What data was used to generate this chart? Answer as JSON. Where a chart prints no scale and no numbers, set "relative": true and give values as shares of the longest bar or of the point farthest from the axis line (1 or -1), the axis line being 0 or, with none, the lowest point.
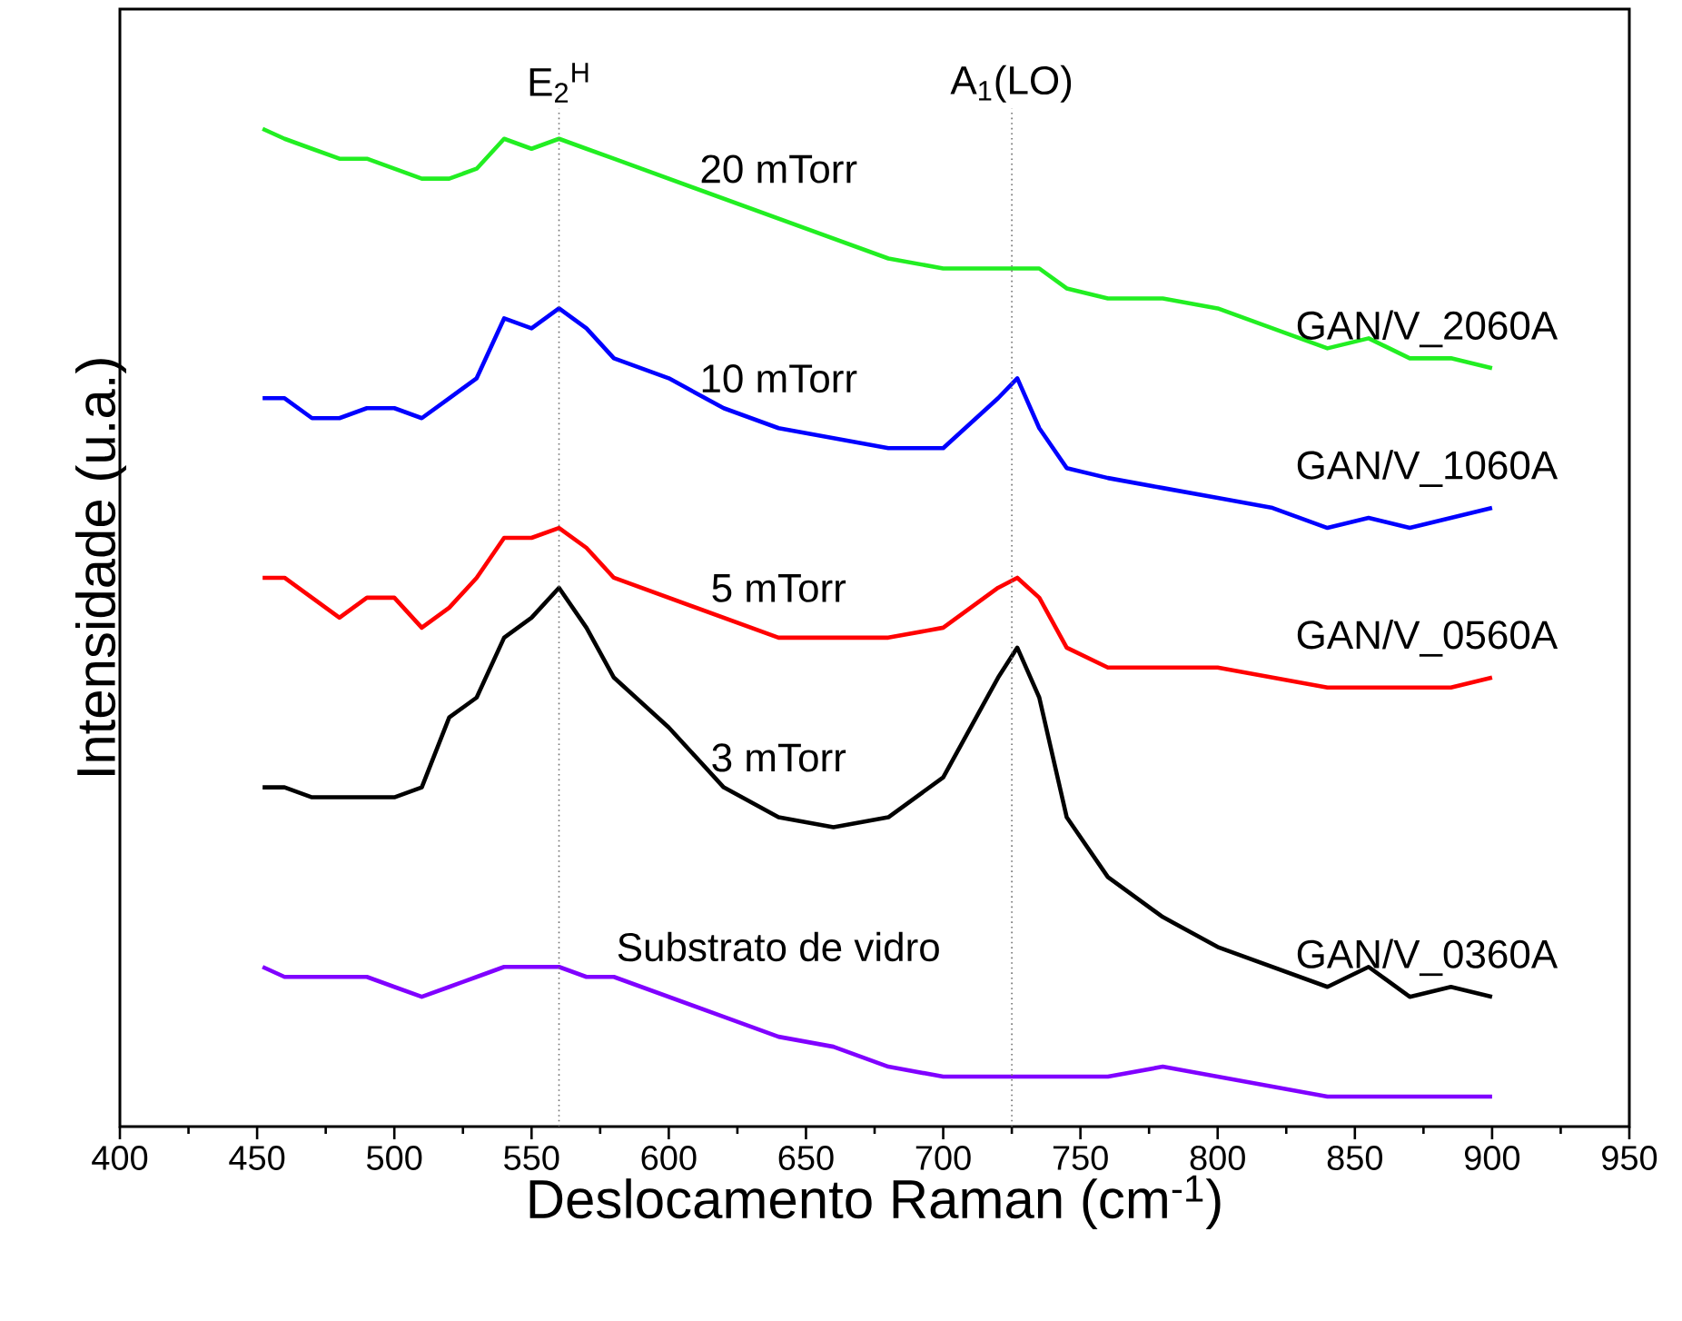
{
  "chart_data": {
    "type": "line",
    "relative": true,
    "line_style": "solid",
    "xlabel": "Deslocamento Raman (cm$^{-1}$)",
    "ylabel": "Intensidade (u.a.)",
    "xlim": [
      400,
      950
    ],
    "xticks": [
      400,
      450,
      500,
      550,
      600,
      650,
      700,
      750,
      800,
      850,
      900,
      950
    ],
    "x": [
      452,
      460,
      470,
      480,
      490,
      500,
      510,
      520,
      530,
      540,
      550,
      560,
      570,
      580,
      600,
      620,
      640,
      660,
      680,
      700,
      720,
      727,
      735,
      745,
      760,
      780,
      800,
      820,
      840,
      855,
      870,
      885,
      900
    ],
    "series": [
      {
        "name": "GAN/V_2060A",
        "color": "#22ee22",
        "values": [
          1.0,
          0.99,
          0.98,
          0.97,
          0.97,
          0.96,
          0.95,
          0.95,
          0.96,
          0.99,
          0.98,
          0.99,
          0.98,
          0.97,
          0.95,
          0.93,
          0.91,
          0.89,
          0.87,
          0.86,
          0.86,
          0.86,
          0.86,
          0.84,
          0.83,
          0.83,
          0.82,
          0.8,
          0.78,
          0.79,
          0.77,
          0.77,
          0.76
        ]
      },
      {
        "name": "GAN/V_1060A",
        "color": "#0000ff",
        "values": [
          0.73,
          0.73,
          0.71,
          0.71,
          0.72,
          0.72,
          0.71,
          0.73,
          0.75,
          0.81,
          0.8,
          0.82,
          0.8,
          0.77,
          0.75,
          0.72,
          0.7,
          0.69,
          0.68,
          0.68,
          0.73,
          0.75,
          0.7,
          0.66,
          0.65,
          0.64,
          0.63,
          0.62,
          0.6,
          0.61,
          0.6,
          0.61,
          0.62
        ]
      },
      {
        "name": "GAN/V_0560A",
        "color": "#ff0000",
        "values": [
          0.55,
          0.55,
          0.53,
          0.51,
          0.53,
          0.53,
          0.5,
          0.52,
          0.55,
          0.59,
          0.59,
          0.6,
          0.58,
          0.55,
          0.53,
          0.51,
          0.49,
          0.49,
          0.49,
          0.5,
          0.54,
          0.55,
          0.53,
          0.48,
          0.46,
          0.46,
          0.46,
          0.45,
          0.44,
          0.44,
          0.44,
          0.44,
          0.45
        ]
      },
      {
        "name": "GAN/V_0360A",
        "color": "#000000",
        "values": [
          0.34,
          0.34,
          0.33,
          0.33,
          0.33,
          0.33,
          0.34,
          0.41,
          0.43,
          0.49,
          0.51,
          0.54,
          0.5,
          0.45,
          0.4,
          0.34,
          0.31,
          0.3,
          0.31,
          0.35,
          0.45,
          0.48,
          0.43,
          0.31,
          0.25,
          0.21,
          0.18,
          0.16,
          0.14,
          0.16,
          0.13,
          0.14,
          0.13
        ]
      },
      {
        "color": "#8000ff",
        "values": [
          0.16,
          0.15,
          0.15,
          0.15,
          0.15,
          0.14,
          0.13,
          0.14,
          0.15,
          0.16,
          0.16,
          0.16,
          0.15,
          0.15,
          0.13,
          0.11,
          0.09,
          0.08,
          0.06,
          0.05,
          0.05,
          0.05,
          0.05,
          0.05,
          0.05,
          0.06,
          0.05,
          0.04,
          0.03,
          0.03,
          0.03,
          0.03,
          0.03
        ]
      }
    ],
    "ref_lines": [
      {
        "axis": "x",
        "value": 560,
        "label": "E$_{2}$$^{H}$",
        "color": "#707070",
        "line_style": "dotted"
      },
      {
        "axis": "x",
        "value": 725,
        "label": "A$_{1}$(LO)",
        "color": "#707070",
        "line_style": "dotted"
      }
    ],
    "annotations": [
      "20 mTorr",
      "10 mTorr",
      "5 mTorr",
      "3 mTorr",
      "Substrato de vidro"
    ]
  }
}
